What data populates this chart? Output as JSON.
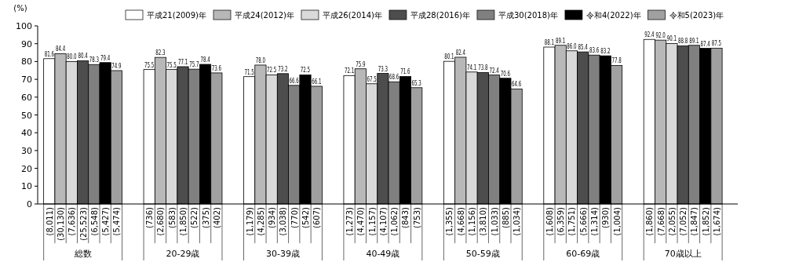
{
  "chart_data": {
    "type": "bar",
    "ylabel": "(%)",
    "categories": [
      "総数",
      "20-29歳",
      "30-39歳",
      "40-49歳",
      "50-59歳",
      "60-69歳",
      "70歳以上"
    ],
    "series": [
      {
        "name": "平成21(2009)年",
        "color": "#ffffff",
        "values": [
          81.6,
          75.5,
          71.5,
          72.1,
          80.1,
          88.1,
          92.4
        ],
        "value_labels": [
          "81.6",
          "75.5",
          "71.5",
          "72.1",
          "80.1",
          "88.1",
          "92.4"
        ]
      },
      {
        "name": "平成24(2012)年",
        "color": "#b8b8b8",
        "values": [
          84.4,
          82.3,
          78.0,
          75.9,
          82.4,
          89.1,
          92.0
        ],
        "value_labels": [
          "84.4",
          "82.3",
          "78.0",
          "75.9",
          "82.4",
          "89.1",
          "92.0"
        ]
      },
      {
        "name": "平成26(2014)年",
        "color": "#d9d9d9",
        "values": [
          80.0,
          75.5,
          72.5,
          67.5,
          74.1,
          86.0,
          90.1
        ],
        "value_labels": [
          "80.0",
          "75.5",
          "72.5",
          "67.5",
          "74.1",
          "86.0",
          "90.1"
        ]
      },
      {
        "name": "平成28(2016)年",
        "color": "#4d4d4d",
        "values": [
          80.4,
          77.1,
          73.2,
          73.3,
          73.8,
          85.4,
          88.8
        ],
        "value_labels": [
          "80.4",
          "77.1",
          "73.2",
          "73.3",
          "73.8",
          "85.4",
          "88.8"
        ]
      },
      {
        "name": "平成30(2018)年",
        "color": "#808080",
        "values": [
          78.3,
          75.7,
          66.6,
          68.6,
          72.4,
          83.6,
          89.1
        ],
        "value_labels": [
          "78.3",
          "75.7",
          "66.6",
          "68.6",
          "72.4",
          "83.6",
          "89.1"
        ]
      },
      {
        "name": "令和4(2022)年",
        "color": "#000000",
        "values": [
          79.4,
          78.4,
          72.5,
          71.6,
          70.6,
          83.2,
          87.4
        ],
        "value_labels": [
          "79.4",
          "78.4",
          "72.5",
          "71.6",
          "70.6",
          "83.2",
          "87.4"
        ]
      },
      {
        "name": "令和5(2023)年",
        "color": "#a0a0a0",
        "values": [
          74.9,
          73.6,
          66.1,
          65.3,
          64.6,
          77.8,
          87.5
        ],
        "value_labels": [
          "74.9",
          "73.6",
          "66.1",
          "65.3",
          "64.6",
          "77.8",
          "87.5"
        ]
      }
    ],
    "ylim": [
      0,
      100
    ],
    "yticks": [
      0,
      10,
      20,
      30,
      40,
      50,
      60,
      70,
      80,
      90,
      100
    ],
    "grid": false,
    "legend": "top",
    "annotations": [
      "(8,011)",
      "(30,130)",
      "(7,636)",
      "(25,523)",
      "(6,548)",
      "(5,427)",
      "(5,474)",
      "(736)",
      "(2,680)",
      "(583)",
      "(1,850)",
      "(522)",
      "(375)",
      "(402)",
      "(1,179)",
      "(4,285)",
      "(934)",
      "(3,038)",
      "(770)",
      "(542)",
      "(607)",
      "(1,273)",
      "(4,470)",
      "(1,157)",
      "(4,107)",
      "(1,062)",
      "(843)",
      "(753)",
      "(1,355)",
      "(4,668)",
      "(1,156)",
      "(3,810)",
      "(1,033)",
      "(885)",
      "(1,034)",
      "(1,608)",
      "(6,359)",
      "(1,751)",
      "(5,666)",
      "(1,314)",
      "(930)",
      "(1,004)",
      "(1,860)",
      "(7,668)",
      "(2,055)",
      "(7,052)",
      "(1,847)",
      "(1,852)",
      "(1,674)"
    ]
  }
}
